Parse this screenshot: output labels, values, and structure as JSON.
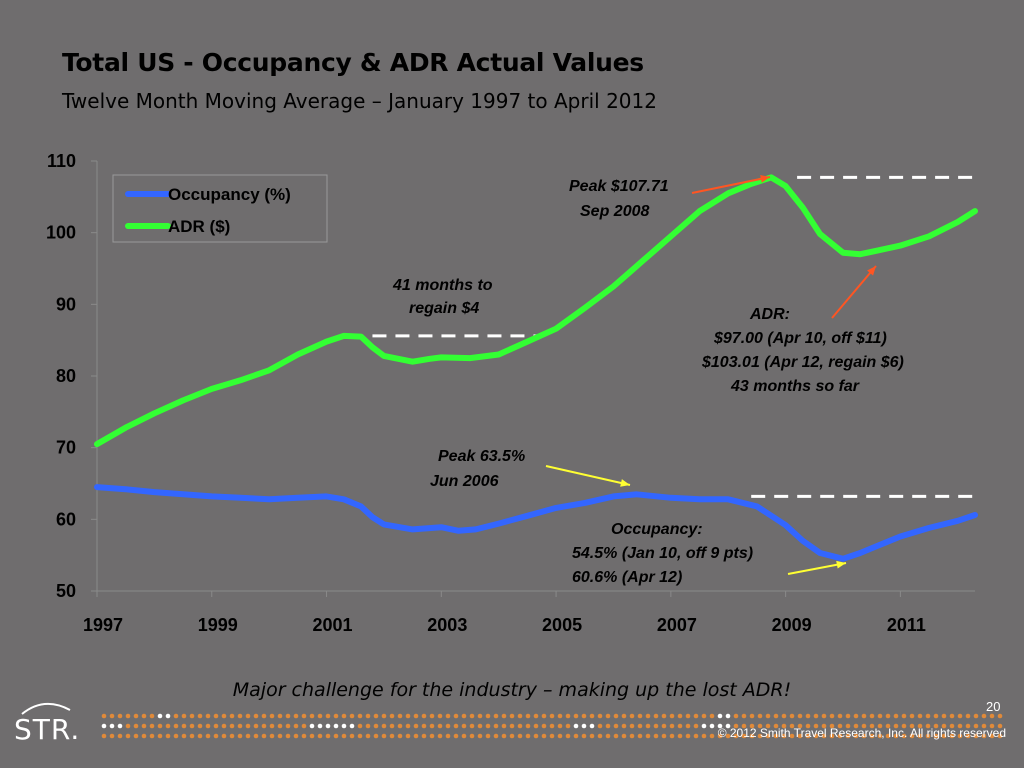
{
  "header": {
    "title": "Total US - Occupancy & ADR Actual Values",
    "subtitle": "Twelve Month Moving Average – January 1997 to April 2012"
  },
  "footer": {
    "text": "Major challenge for the industry – making up the lost ADR!",
    "page_number": "20",
    "copyright": "© 2012 Smith Travel Research, Inc. All rights reserved",
    "logo_text": "STR."
  },
  "chart_data": {
    "type": "line",
    "title": "",
    "xlabel": "",
    "ylabel": "",
    "xlim": [
      1997,
      2012.3
    ],
    "ylim": [
      50,
      110
    ],
    "y_ticks": [
      "50",
      "60",
      "70",
      "80",
      "90",
      "100",
      "110"
    ],
    "x_ticks": [
      "1997",
      "1999",
      "2001",
      "2003",
      "2005",
      "2007",
      "2009",
      "2011"
    ],
    "legend_position": "top-left",
    "series": [
      {
        "name": "Occupancy (%)",
        "color": "#3366ff",
        "x": [
          1997.0,
          1997.5,
          1998.0,
          1998.5,
          1999.0,
          1999.5,
          2000.0,
          2000.5,
          2001.0,
          2001.3,
          2001.6,
          2001.8,
          2002.0,
          2002.5,
          2003.0,
          2003.3,
          2003.6,
          2004.0,
          2004.5,
          2005.0,
          2005.5,
          2006.0,
          2006.4,
          2007.0,
          2007.5,
          2008.0,
          2008.5,
          2009.0,
          2009.3,
          2009.6,
          2010.0,
          2010.3,
          2010.6,
          2011.0,
          2011.5,
          2012.0,
          2012.3
        ],
        "y": [
          64.5,
          64.2,
          63.8,
          63.5,
          63.2,
          63.0,
          62.8,
          63.0,
          63.2,
          62.8,
          61.8,
          60.3,
          59.3,
          58.6,
          58.9,
          58.4,
          58.6,
          59.4,
          60.5,
          61.6,
          62.3,
          63.2,
          63.5,
          63.0,
          62.8,
          62.8,
          61.8,
          59.2,
          57.0,
          55.3,
          54.5,
          55.3,
          56.3,
          57.6,
          58.8,
          59.8,
          60.6
        ]
      },
      {
        "name": "ADR ($)",
        "color": "#33ff33",
        "x": [
          1997.0,
          1997.5,
          1998.0,
          1998.5,
          1999.0,
          1999.5,
          2000.0,
          2000.5,
          2001.0,
          2001.3,
          2001.6,
          2001.8,
          2002.0,
          2002.5,
          2002.8,
          2003.0,
          2003.5,
          2004.0,
          2004.5,
          2005.0,
          2005.5,
          2006.0,
          2006.5,
          2007.0,
          2007.5,
          2008.0,
          2008.4,
          2008.75,
          2009.0,
          2009.3,
          2009.6,
          2010.0,
          2010.3,
          2010.6,
          2011.0,
          2011.5,
          2012.0,
          2012.3
        ],
        "y": [
          70.5,
          72.8,
          74.8,
          76.6,
          78.2,
          79.4,
          80.8,
          83.0,
          84.8,
          85.6,
          85.5,
          84.0,
          82.8,
          82.0,
          82.4,
          82.6,
          82.5,
          83.0,
          84.8,
          86.6,
          89.5,
          92.5,
          96.0,
          99.5,
          103.0,
          105.5,
          106.8,
          107.71,
          106.5,
          103.5,
          99.8,
          97.2,
          97.0,
          97.5,
          98.2,
          99.5,
          101.5,
          103.01
        ]
      }
    ],
    "reference_lines": [
      {
        "y": 85.6,
        "x_start": 2001.8,
        "x_end": 2004.7,
        "color": "#ffffff",
        "style": "dashed"
      },
      {
        "y": 107.71,
        "x_start": 2009.2,
        "x_end": 2012.3,
        "color": "#ffffff",
        "style": "dashed"
      },
      {
        "y": 63.2,
        "x_start": 2008.4,
        "x_end": 2012.3,
        "color": "#ffffff",
        "style": "dashed"
      }
    ],
    "annotations": [
      {
        "lines": [
          "Peak $107.71",
          "Sep 2008"
        ],
        "arrow_color": "#ff5522"
      },
      {
        "lines": [
          "41 months to",
          "regain $4"
        ]
      },
      {
        "lines": [
          "ADR:",
          "$97.00  (Apr 10, off $11)",
          "$103.01  (Apr 12, regain $6)",
          "43 months so far"
        ],
        "arrow_color": "#ff5522"
      },
      {
        "lines": [
          "Peak 63.5%",
          "Jun 2006"
        ],
        "arrow_color": "#ffff33"
      },
      {
        "lines": [
          "Occupancy:",
          "54.5%  (Jan 10, off 9 pts)",
          "60.6%  (Apr 12)"
        ],
        "arrow_color": "#ffff33"
      }
    ]
  }
}
